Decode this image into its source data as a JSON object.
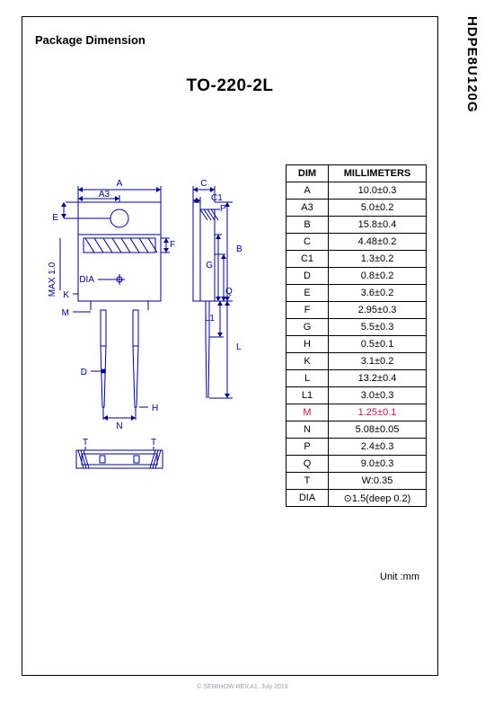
{
  "part_number": "HDPE8U120G",
  "section_title": "Package Dimension",
  "package_name": "TO-220-2L",
  "unit_label": "Unit :mm",
  "footer": "© SEMIHOW REV.A1, July 2019",
  "diagram": {
    "labels": {
      "A": "A",
      "A3": "A3",
      "B": "B",
      "C": "C",
      "C1": "C1",
      "D": "D",
      "E": "E",
      "F": "F",
      "G": "G",
      "H": "H",
      "K": "K",
      "L": "L",
      "L1": "L1",
      "M": "M",
      "N": "N",
      "P": "P",
      "Q": "Q",
      "T": "T",
      "DIA": "DIA",
      "MAX": "MAX 1.0"
    },
    "colors": {
      "stroke": "#00008b",
      "text": "#00008b",
      "hatch": "#00008b",
      "bg": "#ffffff"
    },
    "line_width": 1,
    "label_fontsize": 10
  },
  "table": {
    "header_dim": "DIM",
    "header_val": "MILLIMETERS",
    "rows": [
      {
        "dim": "A",
        "val": "10.0±0.3"
      },
      {
        "dim": "A3",
        "val": "5.0±0.2"
      },
      {
        "dim": "B",
        "val": "15.8±0.4"
      },
      {
        "dim": "C",
        "val": "4.48±0.2"
      },
      {
        "dim": "C1",
        "val": "1.3±0.2"
      },
      {
        "dim": "D",
        "val": "0.8±0.2"
      },
      {
        "dim": "E",
        "val": "3.6±0.2"
      },
      {
        "dim": "F",
        "val": "2.95±0.3"
      },
      {
        "dim": "G",
        "val": "5.5±0.3"
      },
      {
        "dim": "H",
        "val": "0.5±0.1"
      },
      {
        "dim": "K",
        "val": "3.1±0.2"
      },
      {
        "dim": "L",
        "val": "13.2±0.4"
      },
      {
        "dim": "L1",
        "val": "3.0±0.3"
      },
      {
        "dim": "M",
        "val": "1.25±0.1",
        "highlight": true
      },
      {
        "dim": "N",
        "val": "5.08±0.05"
      },
      {
        "dim": "P",
        "val": "2.4±0.3"
      },
      {
        "dim": "Q",
        "val": "9.0±0.3"
      },
      {
        "dim": "T",
        "val": "W:0.35"
      },
      {
        "dim": "DIA",
        "val": "⊙1.5(deep 0.2)"
      }
    ],
    "header_fontsize": 11,
    "cell_fontsize": 11
  }
}
